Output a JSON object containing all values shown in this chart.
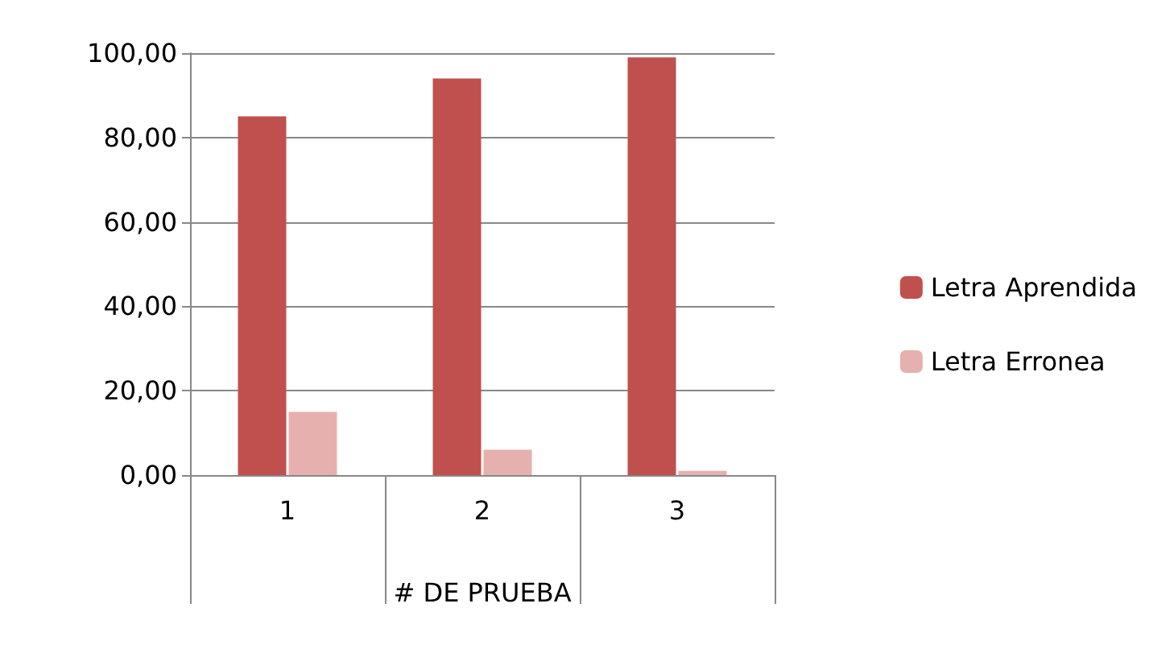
{
  "chart_data": {
    "type": "bar",
    "xlabel": "# DE PRUEBA",
    "categories": [
      "1",
      "2",
      "3"
    ],
    "series": [
      {
        "name": "Letra Aprendida",
        "color": "#c0504d",
        "values": [
          85,
          94,
          99
        ]
      },
      {
        "name": "Letra Erronea",
        "color": "#e6b0ae",
        "values": [
          15,
          6,
          1
        ]
      }
    ],
    "ylim": [
      0,
      100
    ],
    "yticks": [
      {
        "value": 0,
        "label": "0,00"
      },
      {
        "value": 20,
        "label": "20,00"
      },
      {
        "value": 40,
        "label": "40,00"
      },
      {
        "value": 60,
        "label": "60,00"
      },
      {
        "value": 80,
        "label": "80,00"
      },
      {
        "value": 100,
        "label": "100,00"
      }
    ],
    "grid": "y",
    "legend": "right"
  }
}
